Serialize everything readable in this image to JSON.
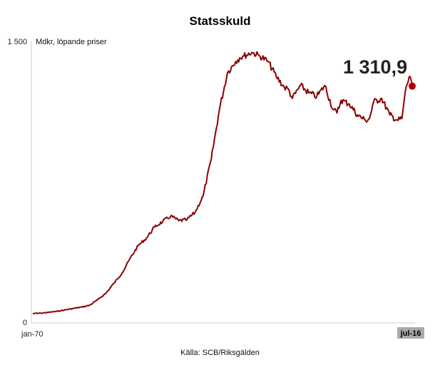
{
  "chart_data": {
    "type": "line",
    "title": "Statsskuld",
    "unit_label": "Mdkr, löpande priser",
    "source": "Källa: SCB/Riksgälden",
    "y_ticks": [
      "1 500",
      "0"
    ],
    "x_ticks": [
      "jan-70",
      "jul-16"
    ],
    "ylim": [
      0,
      1500
    ],
    "x_range": [
      "1970-01",
      "2016-07"
    ],
    "grid": false,
    "line_color": "#8b0000",
    "end_marker_color": "#b00000",
    "end_label_bg": "#aaaaaa",
    "last_value_label": "1 310,9",
    "series": [
      {
        "x": [
          "1970-01",
          "1971-01",
          "1972-01",
          "1973-01",
          "1974-01",
          "1975-01",
          "1976-01",
          "1977-01",
          "1978-01",
          "1979-01",
          "1980-01",
          "1981-01",
          "1982-01",
          "1983-01",
          "1984-01",
          "1985-01",
          "1986-01",
          "1987-01",
          "1988-01",
          "1989-01",
          "1990-01",
          "1991-01",
          "1992-01",
          "1993-01",
          "1994-01",
          "1995-01",
          "1995-07",
          "1996-01",
          "1997-01",
          "1998-01",
          "1999-01",
          "2000-01",
          "2001-01",
          "2001-07",
          "2002-01",
          "2003-01",
          "2004-01",
          "2005-01",
          "2006-01",
          "2007-01",
          "2007-07",
          "2008-01",
          "2009-01",
          "2010-01",
          "2011-01",
          "2011-07",
          "2012-01",
          "2013-01",
          "2014-01",
          "2015-01",
          "2015-07",
          "2016-01",
          "2016-07"
        ],
        "values": [
          20,
          22,
          27,
          32,
          40,
          48,
          55,
          65,
          95,
          130,
          185,
          240,
          320,
          390,
          430,
          490,
          520,
          550,
          525,
          530,
          570,
          660,
          860,
          1130,
          1330,
          1390,
          1410,
          1420,
          1440,
          1420,
          1390,
          1310,
          1250,
          1240,
          1190,
          1260,
          1220,
          1200,
          1260,
          1130,
          1110,
          1180,
          1160,
          1100,
          1070,
          1080,
          1170,
          1190,
          1100,
          1070,
          1080,
          1250,
          1310.9
        ]
      }
    ]
  }
}
